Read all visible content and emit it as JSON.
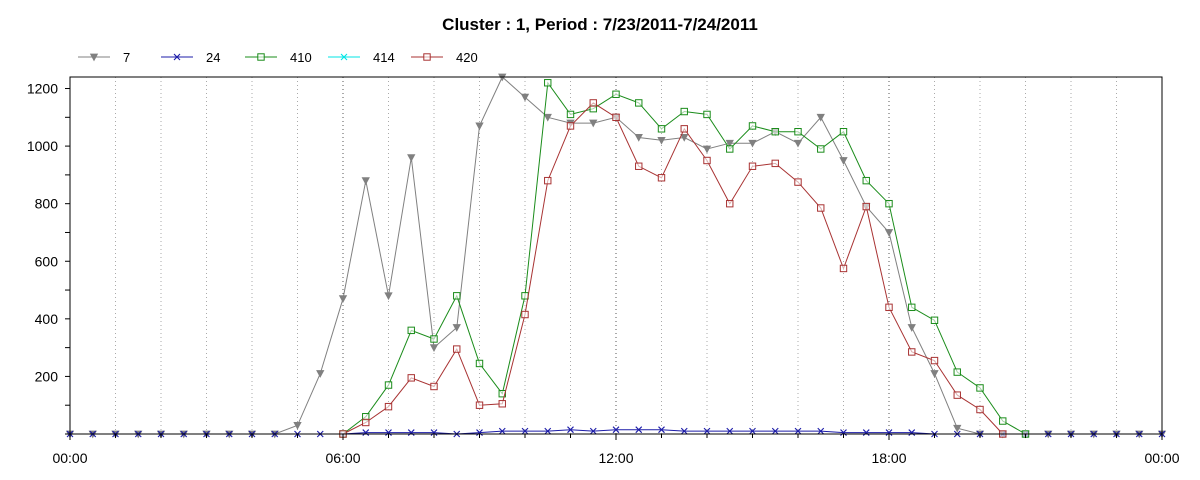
{
  "chart_data": {
    "type": "line",
    "title": "Cluster : 1, Period : 7/23/2011-7/24/2011",
    "xlabel": "",
    "ylabel": "",
    "x_ticks": [
      "00:00",
      "06:00",
      "12:00",
      "18:00",
      "00:00"
    ],
    "x_range_hours": [
      0,
      24
    ],
    "y_ticks": [
      200,
      400,
      600,
      800,
      1000,
      1200
    ],
    "ylim": [
      0,
      1240
    ],
    "grid": "dotted-vertical",
    "legend_position": "top-left",
    "sample_times": [
      "00:00",
      "00:30",
      "01:00",
      "01:30",
      "02:00",
      "02:30",
      "03:00",
      "03:30",
      "04:00",
      "04:30",
      "05:00",
      "05:30",
      "06:00",
      "06:30",
      "07:00",
      "07:30",
      "08:00",
      "08:30",
      "09:00",
      "09:30",
      "10:00",
      "10:30",
      "11:00",
      "11:30",
      "12:00",
      "12:30",
      "13:00",
      "13:30",
      "14:00",
      "14:30",
      "15:00",
      "15:30",
      "16:00",
      "16:30",
      "17:00",
      "17:30",
      "18:00",
      "18:30",
      "19:00",
      "19:30",
      "20:00",
      "20:30",
      "21:00",
      "21:30",
      "22:00",
      "22:30",
      "23:00",
      "23:30",
      "24:00"
    ],
    "series": [
      {
        "name": "7",
        "color": "#808080",
        "marker": "triangle-down",
        "values": [
          0,
          0,
          0,
          0,
          0,
          0,
          0,
          0,
          0,
          0,
          30,
          210,
          470,
          880,
          480,
          960,
          300,
          370,
          1070,
          1240,
          1170,
          1100,
          1080,
          1080,
          1100,
          1030,
          1020,
          1030,
          990,
          1010,
          1010,
          1050,
          1010,
          1100,
          950,
          790,
          700,
          370,
          210,
          20,
          0,
          0,
          0,
          0,
          0,
          0,
          0,
          0,
          0
        ]
      },
      {
        "name": "24",
        "color": "#1c1ca8",
        "marker": "x",
        "values": [
          0,
          0,
          0,
          0,
          0,
          0,
          0,
          0,
          0,
          0,
          0,
          0,
          0,
          5,
          5,
          5,
          5,
          0,
          5,
          10,
          10,
          10,
          15,
          10,
          15,
          15,
          15,
          10,
          10,
          10,
          10,
          10,
          10,
          10,
          5,
          5,
          5,
          5,
          0,
          0,
          0,
          0,
          0,
          0,
          0,
          0,
          0,
          0,
          0
        ]
      },
      {
        "name": "410",
        "color": "#1a8c1a",
        "marker": "square",
        "values": [
          null,
          null,
          null,
          null,
          null,
          null,
          null,
          null,
          null,
          null,
          null,
          null,
          0,
          60,
          170,
          360,
          330,
          480,
          245,
          140,
          480,
          1220,
          1110,
          1130,
          1180,
          1150,
          1060,
          1120,
          1110,
          990,
          1070,
          1050,
          1050,
          990,
          1050,
          880,
          800,
          440,
          395,
          215,
          160,
          45,
          0,
          null,
          null,
          null,
          null,
          null,
          null
        ]
      },
      {
        "name": "414",
        "color": "#00e5e5",
        "marker": "x",
        "values": []
      },
      {
        "name": "420",
        "color": "#a83232",
        "marker": "square",
        "values": [
          null,
          null,
          null,
          null,
          null,
          null,
          null,
          null,
          null,
          null,
          null,
          null,
          0,
          40,
          95,
          195,
          165,
          295,
          100,
          105,
          415,
          880,
          1070,
          1150,
          1100,
          930,
          890,
          1060,
          950,
          800,
          930,
          940,
          875,
          785,
          575,
          790,
          440,
          285,
          255,
          135,
          85,
          0,
          null,
          null,
          null,
          null,
          null,
          null,
          null
        ]
      }
    ]
  }
}
